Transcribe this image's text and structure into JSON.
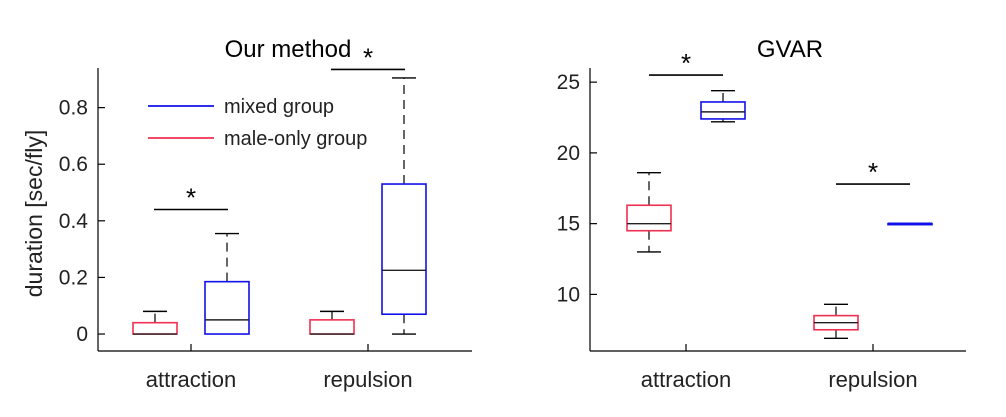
{
  "chart_data": [
    {
      "type": "box",
      "title": "Our method",
      "xlabel": "",
      "ylabel": "duration [sec/fly]",
      "ylim": [
        -0.06,
        0.94
      ],
      "yticks": [
        0,
        0.2,
        0.4,
        0.6,
        0.8
      ],
      "ytick_labels": [
        "0",
        "0.2",
        "0.4",
        "0.6",
        "0.8"
      ],
      "categories": [
        "attraction",
        "repulsion"
      ],
      "legend": {
        "placement": "top-left",
        "entries": [
          {
            "label": "mixed group",
            "color": "#1010e8"
          },
          {
            "label": "male-only group",
            "color": "#f03050"
          }
        ]
      },
      "boxes": [
        {
          "category": "attraction",
          "group": "male-only group",
          "color": "#f03050",
          "whisker_low": 0,
          "q1": 0,
          "median": 0,
          "q3": 0.04,
          "whisker_high": 0.08
        },
        {
          "category": "attraction",
          "group": "mixed group",
          "color": "#1010e8",
          "whisker_low": 0,
          "q1": 0,
          "median": 0.05,
          "q3": 0.185,
          "whisker_high": 0.355
        },
        {
          "category": "repulsion",
          "group": "male-only group",
          "color": "#f03050",
          "whisker_low": 0,
          "q1": 0,
          "median": 0,
          "q3": 0.05,
          "whisker_high": 0.08
        },
        {
          "category": "repulsion",
          "group": "mixed group",
          "color": "#1010e8",
          "whisker_low": 0,
          "q1": 0.07,
          "median": 0.225,
          "q3": 0.53,
          "whisker_high": 0.905
        }
      ],
      "significance": [
        {
          "category": "attraction",
          "y": 0.44,
          "label": "*"
        },
        {
          "category": "repulsion",
          "y": 0.935,
          "label": "*"
        }
      ],
      "grid": false
    },
    {
      "type": "box",
      "title": "GVAR",
      "xlabel": "",
      "ylabel": "",
      "ylim": [
        6.0,
        26.0
      ],
      "yticks": [
        10,
        15,
        20,
        25
      ],
      "ytick_labels": [
        "10",
        "15",
        "20",
        "25"
      ],
      "categories": [
        "attraction",
        "repulsion"
      ],
      "boxes": [
        {
          "category": "attraction",
          "group": "male-only group",
          "color": "#f03050",
          "whisker_low": 13.0,
          "q1": 14.5,
          "median": 15.0,
          "q3": 16.3,
          "whisker_high": 18.6
        },
        {
          "category": "attraction",
          "group": "mixed group",
          "color": "#1010e8",
          "whisker_low": 22.2,
          "q1": 22.4,
          "median": 22.9,
          "q3": 23.6,
          "whisker_high": 24.4
        },
        {
          "category": "repulsion",
          "group": "male-only group",
          "color": "#f03050",
          "whisker_low": 6.9,
          "q1": 7.5,
          "median": 8.0,
          "q3": 8.5,
          "whisker_high": 9.3
        },
        {
          "category": "repulsion",
          "group": "mixed group",
          "color": "#1010e8",
          "whisker_low": 15.0,
          "q1": 15.0,
          "median": 15.0,
          "q3": 15.0,
          "whisker_high": 15.0
        }
      ],
      "significance": [
        {
          "category": "attraction",
          "y": 25.5,
          "label": "*"
        },
        {
          "category": "repulsion",
          "y": 17.8,
          "label": "*"
        }
      ],
      "grid": false
    }
  ]
}
